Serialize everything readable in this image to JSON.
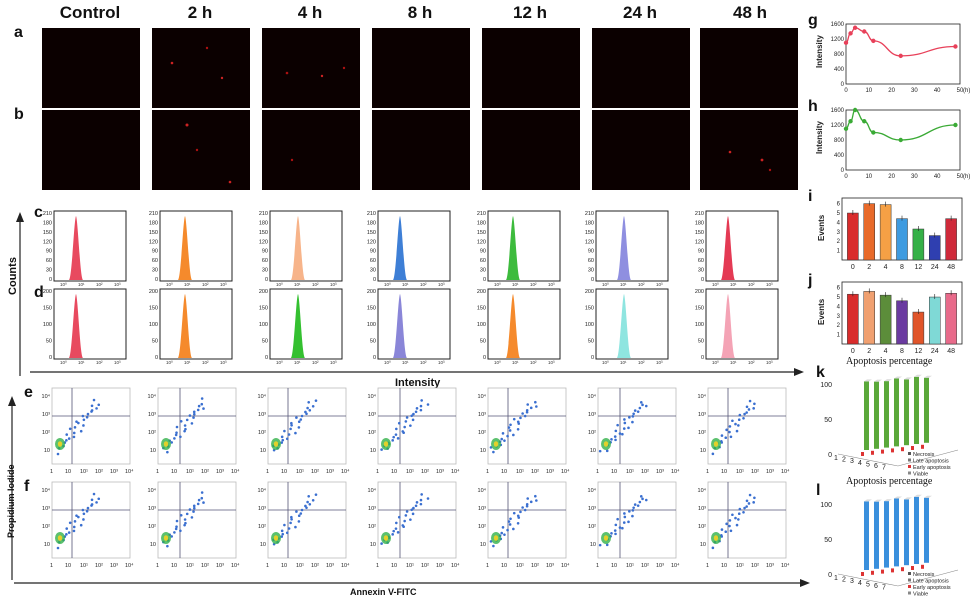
{
  "headers": [
    "Control",
    "2 h",
    "4 h",
    "8 h",
    "12 h",
    "24 h",
    "48 h"
  ],
  "panel_letters": {
    "a": "a",
    "b": "b",
    "c": "c",
    "d": "d",
    "e": "e",
    "f": "f",
    "g": "g",
    "h": "h",
    "i": "i",
    "j": "j",
    "k": "k",
    "l": "l"
  },
  "histograms": {
    "ylabel": "Counts",
    "xlabel": "Intensity",
    "c_ticks": [
      "210",
      "180",
      "150",
      "120",
      "90",
      "60",
      "30",
      "0"
    ],
    "d_ticks": [
      "200",
      "150",
      "100",
      "50",
      "0"
    ],
    "c_colors": [
      "#e84a5f",
      "#f58a2c",
      "#f7b48a",
      "#3e7fd6",
      "#3dbb3d",
      "#8f8fe0",
      "#e43a54"
    ],
    "d_colors": [
      "#e84a5f",
      "#f58a2c",
      "#34c030",
      "#8a86d8",
      "#f58a2c",
      "#8fe5e0",
      "#f4a3b5"
    ]
  },
  "flow": {
    "ylabel": "Propidium Iodide",
    "xlabel": "Annexin V-FITC",
    "yticks": [
      "10⁴",
      "10³",
      "10²",
      "10"
    ],
    "xticks": [
      "1",
      "10",
      "10¹",
      "10²",
      "10³",
      "10⁴"
    ]
  },
  "chart_data": [
    {
      "panel": "g",
      "type": "line",
      "x": [
        0,
        2,
        4,
        8,
        12,
        24,
        48
      ],
      "y": [
        1100,
        1350,
        1500,
        1400,
        1150,
        750,
        1000
      ],
      "xlabel": "(h)",
      "ylabel": "Intensity",
      "yticks": [
        0,
        400,
        800,
        1200,
        1600
      ],
      "xticks": [
        0,
        10,
        20,
        30,
        40,
        50
      ],
      "color": "#e8415a"
    },
    {
      "panel": "h",
      "type": "line",
      "x": [
        0,
        2,
        4,
        8,
        12,
        24,
        48
      ],
      "y": [
        1100,
        1300,
        1600,
        1300,
        1000,
        800,
        1200
      ],
      "xlabel": "(h)",
      "ylabel": "Intensity",
      "yticks": [
        0,
        400,
        800,
        1200,
        1600
      ],
      "xticks": [
        0,
        10,
        20,
        30,
        40,
        50
      ],
      "color": "#3aaa35"
    },
    {
      "panel": "i",
      "type": "bar",
      "categories": [
        "0",
        "2",
        "4",
        "8",
        "12",
        "24",
        "48"
      ],
      "values": [
        5.0,
        6.0,
        5.9,
        4.4,
        3.3,
        2.6,
        4.4
      ],
      "ylabel": "Events",
      "yticks": [
        1,
        2,
        3,
        4,
        5,
        6
      ],
      "colors": [
        "#d92b2b",
        "#e86a2a",
        "#f5a045",
        "#3e9be0",
        "#35b047",
        "#2f3fb0",
        "#cf2a3a"
      ]
    },
    {
      "panel": "j",
      "type": "bar",
      "categories": [
        "0",
        "2",
        "4",
        "8",
        "12",
        "24",
        "48"
      ],
      "values": [
        5.3,
        5.6,
        5.2,
        4.6,
        3.4,
        5.0,
        5.4
      ],
      "ylabel": "Events",
      "yticks": [
        1,
        2,
        3,
        4,
        5,
        6
      ],
      "colors": [
        "#d92b2b",
        "#f0a070",
        "#5c8d3a",
        "#6a3aa0",
        "#e0552a",
        "#7fd9d6",
        "#e86a8a"
      ]
    },
    {
      "panel": "k",
      "type": "bar3d",
      "title": "Apoptosis percentage",
      "categories": [
        "1",
        "2",
        "3",
        "4",
        "5",
        "6",
        "7"
      ],
      "viable": [
        98,
        96,
        95,
        97,
        94,
        96,
        93
      ],
      "color": "#5aa83a",
      "yticks": [
        0,
        50,
        100
      ],
      "legend": [
        "Necrosis",
        "Late apoptosis",
        "Early apoptosis",
        "Viable"
      ]
    },
    {
      "panel": "l",
      "type": "bar3d",
      "title": "Apoptosis percentage",
      "categories": [
        "1",
        "2",
        "3",
        "4",
        "5",
        "6",
        "7"
      ],
      "viable": [
        98,
        96,
        95,
        97,
        94,
        96,
        93
      ],
      "color": "#3a8fdc",
      "yticks": [
        0,
        50,
        100
      ],
      "legend": [
        "Necrosis",
        "Late apoptosis",
        "Early apoptosis",
        "Viable"
      ]
    }
  ]
}
